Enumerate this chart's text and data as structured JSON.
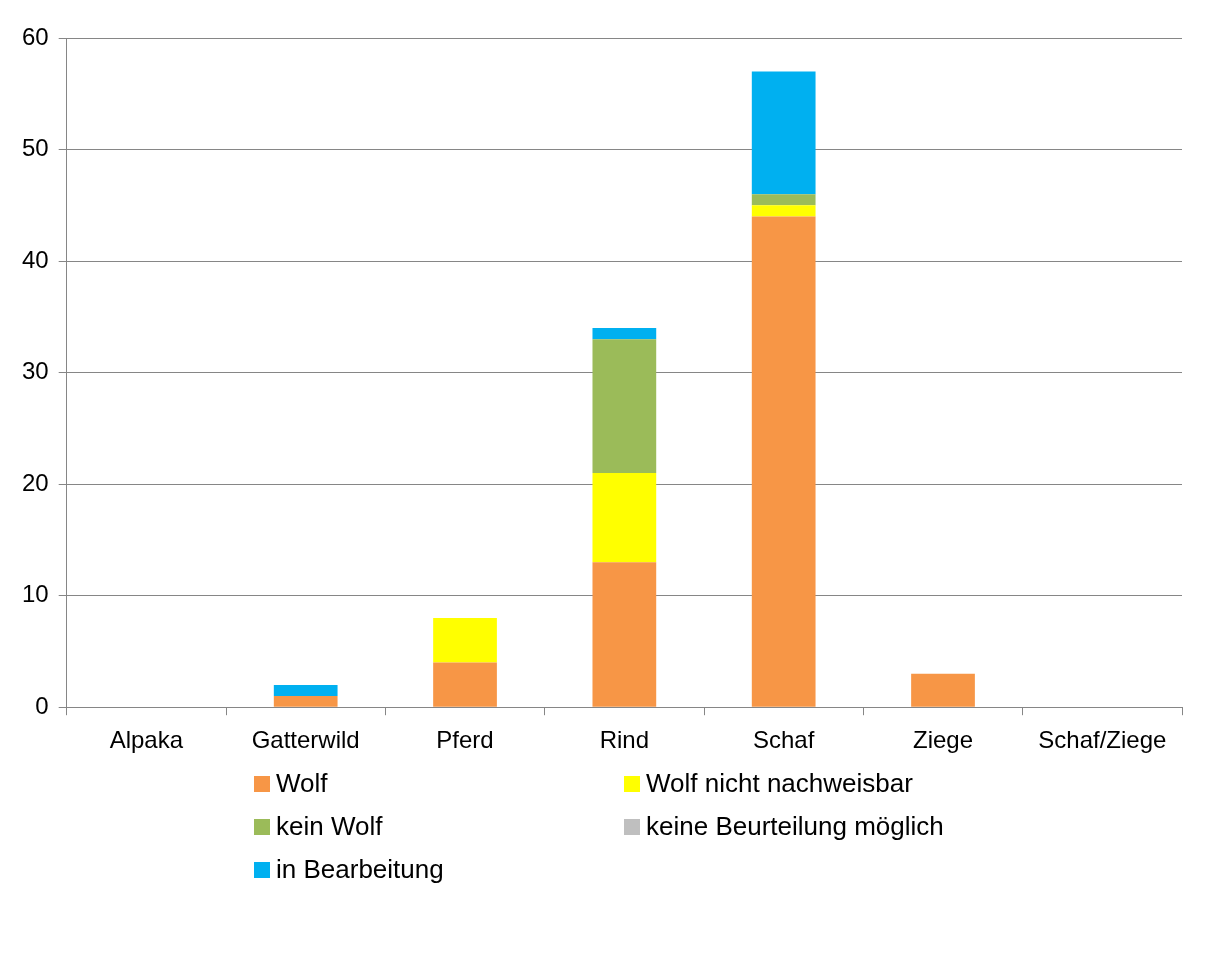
{
  "chart_data": {
    "type": "bar",
    "stacked": true,
    "categories": [
      "Alpaka",
      "Gatterwild",
      "Pferd",
      "Rind",
      "Schaf",
      "Ziege",
      "Schaf/Ziege"
    ],
    "series": [
      {
        "name": "Wolf",
        "color": "#f79646",
        "values": [
          0,
          1,
          4,
          13,
          44,
          3,
          0
        ]
      },
      {
        "name": "Wolf nicht nachweisbar",
        "color": "#ffff00",
        "values": [
          0,
          0,
          4,
          8,
          1,
          0,
          0
        ]
      },
      {
        "name": "kein Wolf",
        "color": "#9bbb59",
        "values": [
          0,
          0,
          0,
          12,
          1,
          0,
          0
        ]
      },
      {
        "name": "keine Beurteilung möglich",
        "color": "#bfbfbf",
        "values": [
          0,
          0,
          0,
          0,
          0,
          0,
          0
        ]
      },
      {
        "name": "in Bearbeitung",
        "color": "#00b0f0",
        "values": [
          0,
          1,
          0,
          1,
          11,
          0,
          0
        ]
      }
    ],
    "ylim": [
      0,
      60
    ],
    "yticks": [
      0,
      10,
      20,
      30,
      40,
      50,
      60
    ],
    "grid": "y",
    "legend": "bottom"
  }
}
